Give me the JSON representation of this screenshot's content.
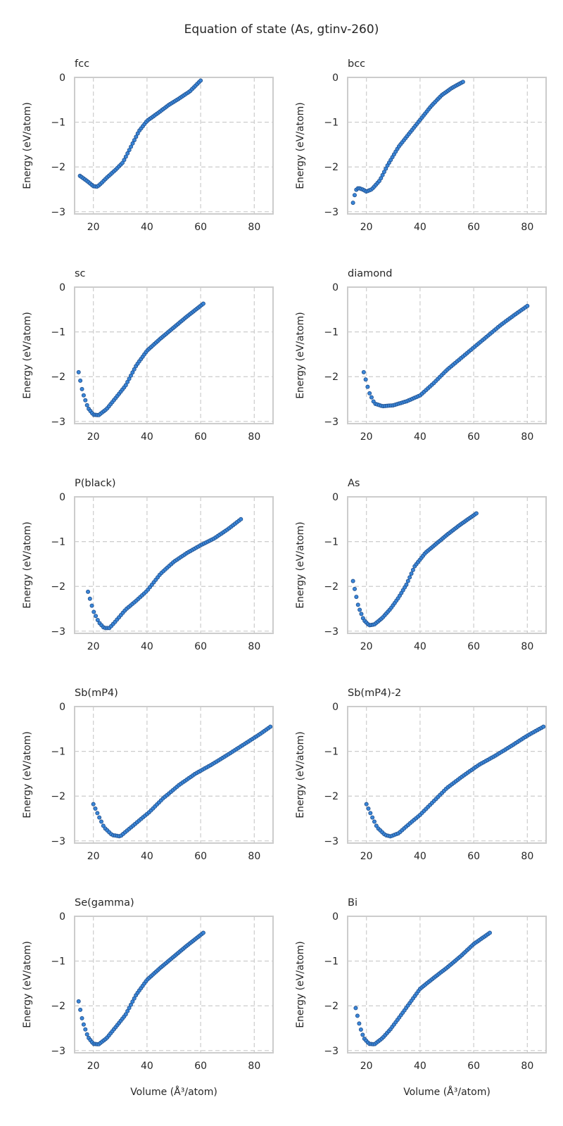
{
  "figure": {
    "title": "Equation of state (As, gtinv-260)",
    "xlabel": "Volume (Å³/atom)",
    "ylabel": "Energy (eV/atom)"
  },
  "style": {
    "marker_fill": "#3a86d8",
    "marker_edge": "#1f4e8c",
    "grid_color": "#cccccc",
    "frame_color": "#cccccc"
  },
  "chart_data": [
    {
      "type": "scatter",
      "title": "fcc",
      "xlabel": "",
      "ylabel": "Energy (eV/atom)",
      "xlim": [
        13,
        87
      ],
      "ylim": [
        -3.05,
        0
      ],
      "xticks": [
        20,
        40,
        60,
        80
      ],
      "yticks": [
        0,
        -1,
        -2,
        -3
      ],
      "grid": true,
      "keypoints": [
        [
          15,
          -2.2
        ],
        [
          18,
          -2.33
        ],
        [
          20,
          -2.43
        ],
        [
          21.5,
          -2.44
        ],
        [
          23,
          -2.36
        ],
        [
          25,
          -2.24
        ],
        [
          28,
          -2.08
        ],
        [
          31,
          -1.9
        ],
        [
          34,
          -1.55
        ],
        [
          37,
          -1.2
        ],
        [
          40,
          -0.97
        ],
        [
          44,
          -0.8
        ],
        [
          48,
          -0.62
        ],
        [
          52,
          -0.47
        ],
        [
          56,
          -0.31
        ],
        [
          60,
          -0.07
        ]
      ],
      "n_points": 72
    },
    {
      "type": "scatter",
      "title": "bcc",
      "xlabel": "",
      "ylabel": "Energy (eV/atom)",
      "xlim": [
        13,
        87
      ],
      "ylim": [
        -3.05,
        0
      ],
      "xticks": [
        20,
        40,
        60,
        80
      ],
      "yticks": [
        0,
        -1,
        -2,
        -3
      ],
      "grid": true,
      "keypoints": [
        [
          15,
          -2.8
        ],
        [
          16,
          -2.52
        ],
        [
          17,
          -2.47
        ],
        [
          18.5,
          -2.5
        ],
        [
          20,
          -2.55
        ],
        [
          22,
          -2.5
        ],
        [
          25,
          -2.3
        ],
        [
          28,
          -1.95
        ],
        [
          32,
          -1.55
        ],
        [
          36,
          -1.25
        ],
        [
          40,
          -0.95
        ],
        [
          44,
          -0.65
        ],
        [
          48,
          -0.4
        ],
        [
          52,
          -0.23
        ],
        [
          56,
          -0.1
        ]
      ],
      "n_points": 68
    },
    {
      "type": "scatter",
      "title": "sc",
      "xlabel": "",
      "ylabel": "Energy (eV/atom)",
      "xlim": [
        13,
        87
      ],
      "ylim": [
        -3.05,
        0
      ],
      "xticks": [
        20,
        40,
        60,
        80
      ],
      "yticks": [
        0,
        -1,
        -2,
        -3
      ],
      "grid": true,
      "keypoints": [
        [
          14.5,
          -1.9
        ],
        [
          16,
          -2.35
        ],
        [
          18,
          -2.7
        ],
        [
          20,
          -2.85
        ],
        [
          22,
          -2.86
        ],
        [
          25,
          -2.72
        ],
        [
          28,
          -2.5
        ],
        [
          32,
          -2.2
        ],
        [
          36,
          -1.75
        ],
        [
          40,
          -1.42
        ],
        [
          45,
          -1.15
        ],
        [
          50,
          -0.9
        ],
        [
          55,
          -0.65
        ],
        [
          61,
          -0.37
        ]
      ],
      "n_points": 75
    },
    {
      "type": "scatter",
      "title": "diamond",
      "xlabel": "",
      "ylabel": "Energy (eV/atom)",
      "xlim": [
        13,
        87
      ],
      "ylim": [
        -3.05,
        0
      ],
      "xticks": [
        20,
        40,
        60,
        80
      ],
      "yticks": [
        0,
        -1,
        -2,
        -3
      ],
      "grid": true,
      "keypoints": [
        [
          19,
          -1.9
        ],
        [
          21,
          -2.35
        ],
        [
          23,
          -2.6
        ],
        [
          26,
          -2.66
        ],
        [
          30,
          -2.64
        ],
        [
          35,
          -2.55
        ],
        [
          40,
          -2.42
        ],
        [
          45,
          -2.15
        ],
        [
          50,
          -1.85
        ],
        [
          55,
          -1.6
        ],
        [
          60,
          -1.35
        ],
        [
          65,
          -1.1
        ],
        [
          70,
          -0.85
        ],
        [
          75,
          -0.63
        ],
        [
          80,
          -0.42
        ]
      ],
      "n_points": 85
    },
    {
      "type": "scatter",
      "title": "P(black)",
      "xlabel": "",
      "ylabel": "Energy (eV/atom)",
      "xlim": [
        13,
        87
      ],
      "ylim": [
        -3.05,
        0
      ],
      "xticks": [
        20,
        40,
        60,
        80
      ],
      "yticks": [
        0,
        -1,
        -2,
        -3
      ],
      "grid": true,
      "keypoints": [
        [
          18,
          -2.12
        ],
        [
          20,
          -2.55
        ],
        [
          22,
          -2.8
        ],
        [
          24,
          -2.93
        ],
        [
          26,
          -2.93
        ],
        [
          28,
          -2.8
        ],
        [
          32,
          -2.52
        ],
        [
          36,
          -2.32
        ],
        [
          40,
          -2.1
        ],
        [
          45,
          -1.72
        ],
        [
          50,
          -1.45
        ],
        [
          55,
          -1.25
        ],
        [
          60,
          -1.08
        ],
        [
          65,
          -0.93
        ],
        [
          70,
          -0.73
        ],
        [
          75,
          -0.5
        ]
      ],
      "n_points": 80
    },
    {
      "type": "scatter",
      "title": "As",
      "xlabel": "",
      "ylabel": "Energy (eV/atom)",
      "xlim": [
        13,
        87
      ],
      "ylim": [
        -3.05,
        0
      ],
      "xticks": [
        20,
        40,
        60,
        80
      ],
      "yticks": [
        0,
        -1,
        -2,
        -3
      ],
      "grid": true,
      "keypoints": [
        [
          15,
          -1.88
        ],
        [
          17,
          -2.45
        ],
        [
          19,
          -2.75
        ],
        [
          21,
          -2.87
        ],
        [
          23,
          -2.85
        ],
        [
          26,
          -2.7
        ],
        [
          29,
          -2.5
        ],
        [
          32,
          -2.25
        ],
        [
          35,
          -1.95
        ],
        [
          38,
          -1.55
        ],
        [
          42,
          -1.25
        ],
        [
          46,
          -1.05
        ],
        [
          50,
          -0.85
        ],
        [
          55,
          -0.62
        ],
        [
          61,
          -0.37
        ]
      ],
      "n_points": 75
    },
    {
      "type": "scatter",
      "title": "Sb(mP4)",
      "xlabel": "",
      "ylabel": "Energy (eV/atom)",
      "xlim": [
        13,
        87
      ],
      "ylim": [
        -3.05,
        0
      ],
      "xticks": [
        20,
        40,
        60,
        80
      ],
      "yticks": [
        0,
        -1,
        -2,
        -3
      ],
      "grid": true,
      "keypoints": [
        [
          20,
          -2.18
        ],
        [
          22,
          -2.45
        ],
        [
          24,
          -2.7
        ],
        [
          27,
          -2.87
        ],
        [
          30,
          -2.9
        ],
        [
          33,
          -2.75
        ],
        [
          37,
          -2.55
        ],
        [
          41,
          -2.35
        ],
        [
          46,
          -2.05
        ],
        [
          52,
          -1.75
        ],
        [
          58,
          -1.5
        ],
        [
          64,
          -1.3
        ],
        [
          70,
          -1.08
        ],
        [
          76,
          -0.85
        ],
        [
          82,
          -0.62
        ],
        [
          86,
          -0.45
        ]
      ],
      "n_points": 90
    },
    {
      "type": "scatter",
      "title": "Sb(mP4)-2",
      "xlabel": "",
      "ylabel": "Energy (eV/atom)",
      "xlim": [
        13,
        87
      ],
      "ylim": [
        -3.05,
        0
      ],
      "xticks": [
        20,
        40,
        60,
        80
      ],
      "yticks": [
        0,
        -1,
        -2,
        -3
      ],
      "grid": true,
      "keypoints": [
        [
          20,
          -2.18
        ],
        [
          22,
          -2.45
        ],
        [
          24,
          -2.7
        ],
        [
          27,
          -2.87
        ],
        [
          29,
          -2.9
        ],
        [
          32,
          -2.83
        ],
        [
          36,
          -2.62
        ],
        [
          40,
          -2.42
        ],
        [
          45,
          -2.12
        ],
        [
          50,
          -1.82
        ],
        [
          56,
          -1.55
        ],
        [
          62,
          -1.3
        ],
        [
          68,
          -1.1
        ],
        [
          74,
          -0.88
        ],
        [
          80,
          -0.65
        ],
        [
          86,
          -0.45
        ]
      ],
      "n_points": 90
    },
    {
      "type": "scatter",
      "title": "Se(gamma)",
      "xlabel": "Volume (Å³/atom)",
      "ylabel": "Energy (eV/atom)",
      "xlim": [
        13,
        87
      ],
      "ylim": [
        -3.05,
        0
      ],
      "xticks": [
        20,
        40,
        60,
        80
      ],
      "yticks": [
        0,
        -1,
        -2,
        -3
      ],
      "grid": true,
      "keypoints": [
        [
          14.5,
          -1.9
        ],
        [
          16,
          -2.35
        ],
        [
          18,
          -2.7
        ],
        [
          20,
          -2.85
        ],
        [
          22,
          -2.86
        ],
        [
          25,
          -2.72
        ],
        [
          28,
          -2.5
        ],
        [
          32,
          -2.2
        ],
        [
          36,
          -1.75
        ],
        [
          40,
          -1.42
        ],
        [
          45,
          -1.15
        ],
        [
          50,
          -0.9
        ],
        [
          55,
          -0.65
        ],
        [
          61,
          -0.37
        ]
      ],
      "n_points": 75
    },
    {
      "type": "scatter",
      "title": "Bi",
      "xlabel": "Volume (Å³/atom)",
      "ylabel": "Energy (eV/atom)",
      "xlim": [
        13,
        87
      ],
      "ylim": [
        -3.05,
        0
      ],
      "xticks": [
        20,
        40,
        60,
        80
      ],
      "yticks": [
        0,
        -1,
        -2,
        -3
      ],
      "grid": true,
      "keypoints": [
        [
          16,
          -2.05
        ],
        [
          17.5,
          -2.45
        ],
        [
          19,
          -2.72
        ],
        [
          21,
          -2.85
        ],
        [
          23,
          -2.86
        ],
        [
          26,
          -2.72
        ],
        [
          29,
          -2.52
        ],
        [
          32,
          -2.28
        ],
        [
          36,
          -1.95
        ],
        [
          40,
          -1.62
        ],
        [
          45,
          -1.38
        ],
        [
          50,
          -1.15
        ],
        [
          55,
          -0.9
        ],
        [
          60,
          -0.62
        ],
        [
          66,
          -0.37
        ]
      ],
      "n_points": 78
    }
  ]
}
